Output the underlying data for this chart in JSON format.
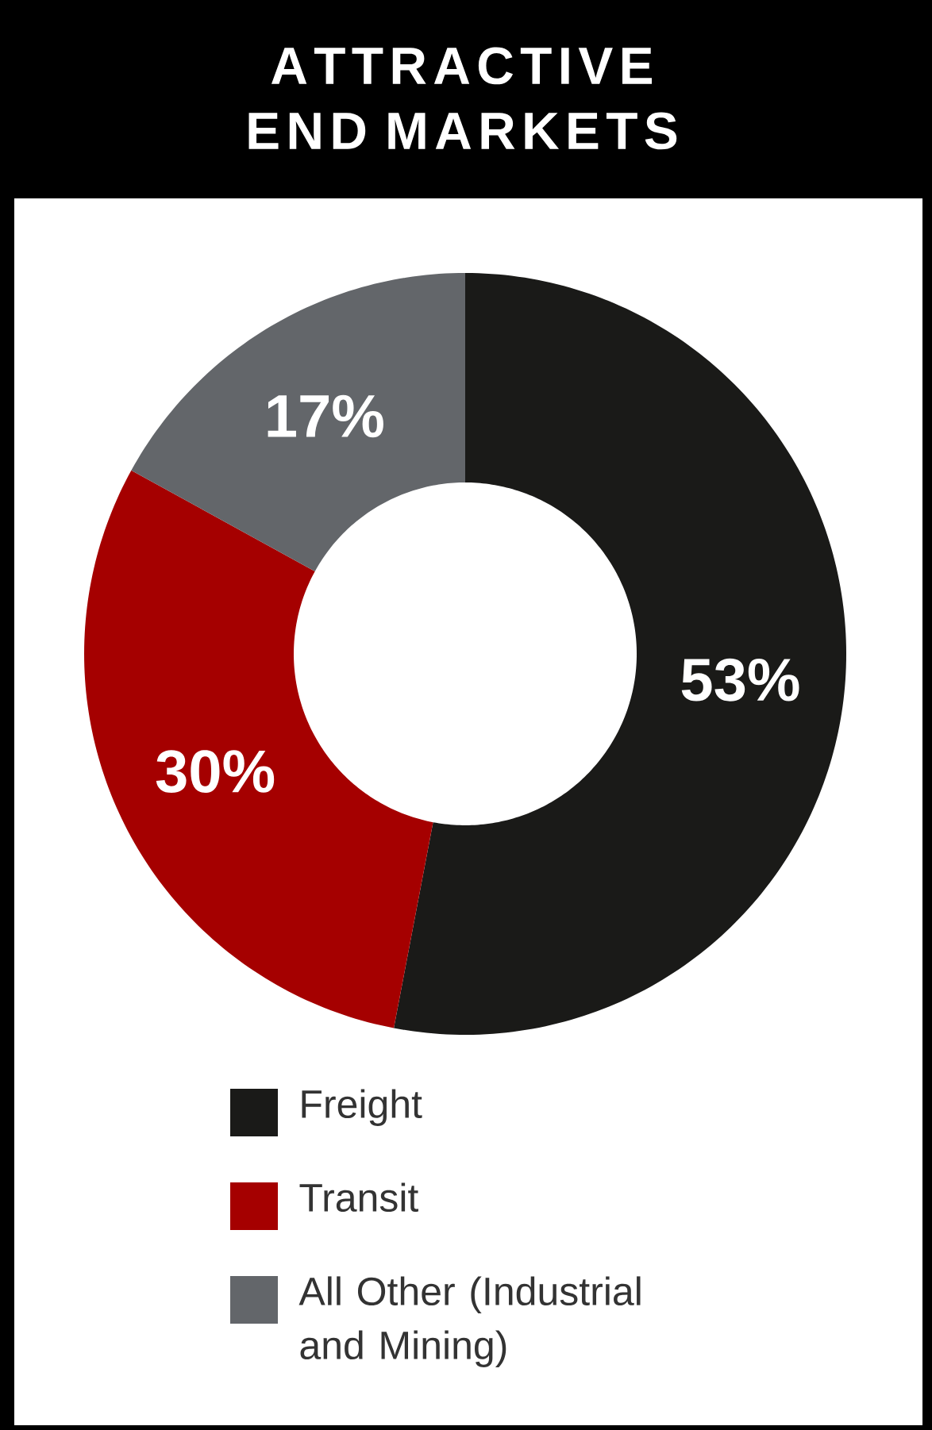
{
  "chart_data": {
    "type": "donut",
    "title": "ATTRACTIVE END MARKETS",
    "categories": [
      "Freight",
      "Transit",
      "All Other (Industrial and Mining)"
    ],
    "values": [
      53,
      30,
      17
    ],
    "value_labels": [
      "53%",
      "30%",
      "17%"
    ],
    "colors": [
      "#1a1a18",
      "#a50000",
      "#63666a"
    ],
    "legend": "bottom"
  }
}
